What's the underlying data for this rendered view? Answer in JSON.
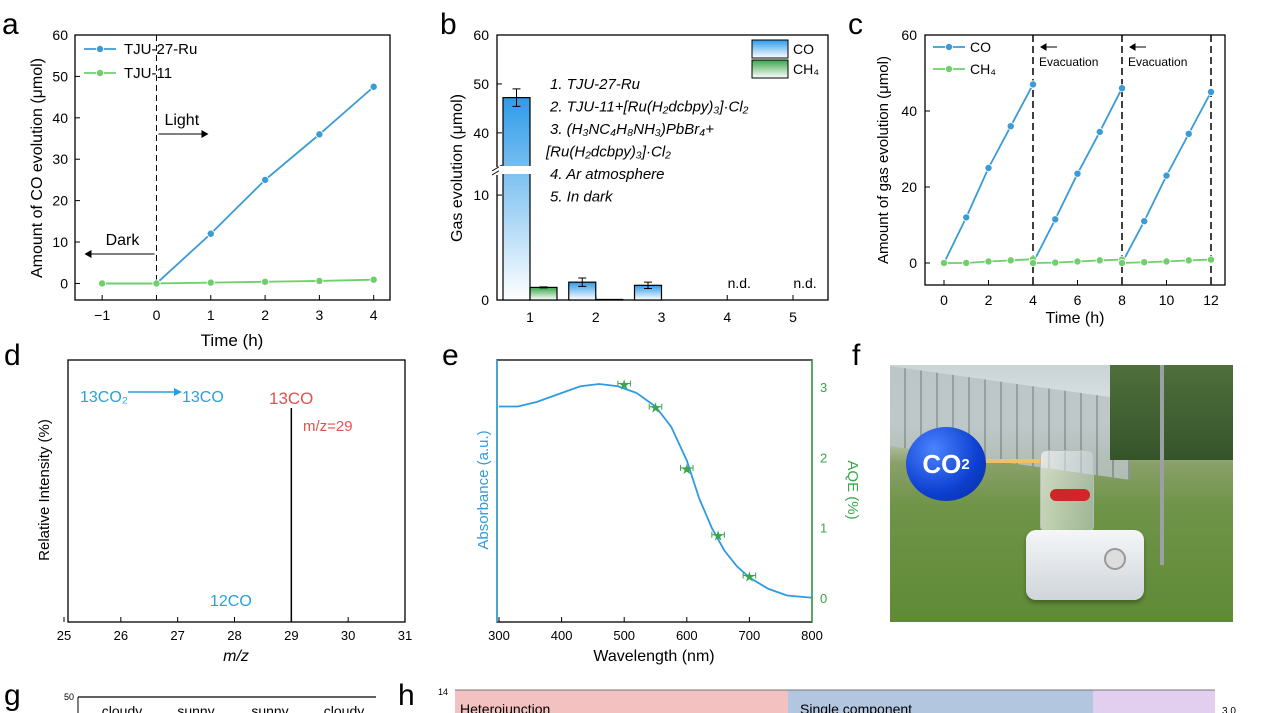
{
  "panel_labels": [
    "a",
    "b",
    "c",
    "d",
    "e",
    "f",
    "g",
    "h"
  ],
  "chart_data": [
    {
      "id": "a",
      "type": "line",
      "xlabel": "Time (h)",
      "ylabel": "Amount of CO evolution (μmol)",
      "xlim": [
        -1.5,
        4.3
      ],
      "ylim": [
        -4,
        60
      ],
      "xticks": [
        -1,
        0,
        1,
        2,
        3,
        4
      ],
      "yticks": [
        0,
        10,
        20,
        30,
        40,
        50,
        60
      ],
      "series": [
        {
          "name": "TJU-27-Ru",
          "color": "#3a9bd5",
          "x": [
            -1,
            0,
            1,
            2,
            3,
            4
          ],
          "y": [
            0,
            0,
            12,
            25,
            36,
            47.5
          ]
        },
        {
          "name": "TJU-11",
          "color": "#6fcf6a",
          "x": [
            -1,
            0,
            1,
            2,
            3,
            4
          ],
          "y": [
            0,
            0,
            0.2,
            0.4,
            0.6,
            0.9
          ]
        }
      ],
      "legend": "top-left",
      "annotations": {
        "light": "Light",
        "dark": "Dark",
        "divider_x": 0
      }
    },
    {
      "id": "b",
      "type": "bar",
      "ylabel": "Gas evolution (μmol)",
      "categories": [
        "1",
        "2",
        "3",
        "4",
        "5"
      ],
      "yticks_lower": [
        0,
        10
      ],
      "yticks_upper": [
        40,
        50,
        60
      ],
      "axis_break": [
        12.2,
        32
      ],
      "series": [
        {
          "name": "CO",
          "color": "#2f9be8",
          "values": [
            47.2,
            1.7,
            1.4,
            null,
            null
          ],
          "errors": [
            1.8,
            0.4,
            0.3,
            null,
            null
          ]
        },
        {
          "name": "CH₄",
          "color": "#3aa54a",
          "values": [
            1.2,
            0.05,
            0,
            null,
            null
          ],
          "errors": [
            0.05,
            null,
            null,
            null,
            null
          ]
        }
      ],
      "nd_label": "n.d.",
      "nd_categories": [
        "4",
        "5"
      ],
      "legend": "top-right",
      "notes": [
        "1. TJU-27-Ru",
        "2. TJU-11+[Ru(H₂dcbpy)₃]·Cl₂",
        "3. (H₃NC₄H₈NH₃)PbBr₄+",
        "[Ru(H₂dcbpy)₃]·Cl₂",
        "4. Ar atmosphere",
        "5. In dark"
      ]
    },
    {
      "id": "c",
      "type": "line",
      "xlabel": "Time (h)",
      "ylabel": "Amount of gas evolution (μmol)",
      "xlim": [
        -0.8,
        12.8
      ],
      "ylim": [
        -6,
        60
      ],
      "xticks": [
        0,
        2,
        4,
        6,
        8,
        10,
        12
      ],
      "yticks": [
        0,
        20,
        40,
        60
      ],
      "series": [
        {
          "name": "CO",
          "color": "#3a9bd5",
          "segments": [
            {
              "x": [
                0,
                1,
                2,
                3,
                4
              ],
              "y": [
                0,
                12,
                25,
                36,
                47
              ]
            },
            {
              "x": [
                4,
                5,
                6,
                7,
                8
              ],
              "y": [
                0,
                11.5,
                23.5,
                34.5,
                46
              ]
            },
            {
              "x": [
                8,
                9,
                10,
                11,
                12
              ],
              "y": [
                0,
                11,
                23,
                34,
                45
              ]
            }
          ]
        },
        {
          "name": "CH₄",
          "color": "#6fcf6a",
          "segments": [
            {
              "x": [
                0,
                1,
                2,
                3,
                4
              ],
              "y": [
                0,
                0,
                0.4,
                0.7,
                1
              ]
            },
            {
              "x": [
                4,
                5,
                6,
                7,
                8
              ],
              "y": [
                0,
                0.1,
                0.4,
                0.7,
                0.9
              ]
            },
            {
              "x": [
                8,
                9,
                10,
                11,
                12
              ],
              "y": [
                0,
                0.2,
                0.4,
                0.7,
                0.9
              ]
            }
          ]
        }
      ],
      "legend": "top-left",
      "evacuation_label": "Evacuation",
      "dividers": [
        4,
        8,
        12
      ]
    },
    {
      "id": "d",
      "type": "bar",
      "xlabel": "m/z",
      "ylabel": "Relative Intensity (%)",
      "xlim": [
        24.8,
        31
      ],
      "xticks": [
        25,
        26,
        27,
        28,
        29,
        30,
        31
      ],
      "peaks": [
        {
          "x": 29,
          "y": 100
        }
      ],
      "annotations": {
        "reaction_from": "13CO₂",
        "reaction_to": "13CO",
        "peak_label": "13CO",
        "mz_label": "m/z=29",
        "co12_label": "12CO"
      },
      "colors": {
        "reaction": "#2aa0d8",
        "peak": "#e0524f"
      }
    },
    {
      "id": "e",
      "type": "line",
      "xlabel": "Wavelength (nm)",
      "ylabel_left": "Absorbance (a.u.)",
      "ylabel_right": "AQE (%)",
      "xlim": [
        300,
        800
      ],
      "xticks": [
        300,
        400,
        500,
        600,
        700,
        800
      ],
      "yticks_right": [
        0,
        1,
        2,
        3
      ],
      "ylim_right": [
        -0.05,
        3.2
      ],
      "absorbance": {
        "color": "#2f9be0",
        "x": [
          300,
          330,
          360,
          400,
          430,
          460,
          490,
          520,
          550,
          575,
          600,
          620,
          640,
          660,
          680,
          700,
          730,
          760,
          800
        ],
        "y": [
          0.86,
          0.86,
          0.88,
          0.92,
          0.95,
          0.96,
          0.95,
          0.92,
          0.86,
          0.77,
          0.62,
          0.45,
          0.32,
          0.22,
          0.15,
          0.1,
          0.05,
          0.02,
          0.01
        ]
      },
      "aqe": {
        "color": "#3aa54a",
        "x": [
          500,
          550,
          600,
          650,
          700
        ],
        "y": [
          3.05,
          2.72,
          1.85,
          0.9,
          0.32
        ],
        "xerr": 10
      }
    }
  ],
  "photo_f": {
    "balloon_label": "CO",
    "balloon_sub": "2"
  },
  "panel_g": {
    "ytick_top": "50",
    "weather": [
      "cloudy",
      "sunny",
      "sunny",
      "cloudy"
    ]
  },
  "panel_h": {
    "ytick_top": "14",
    "right_tick": "3.0",
    "regions": [
      "Heterojunction",
      "Single component"
    ],
    "region_colors": [
      "#f3c2c0",
      "#b3c6e0",
      "#e2cff0"
    ]
  }
}
